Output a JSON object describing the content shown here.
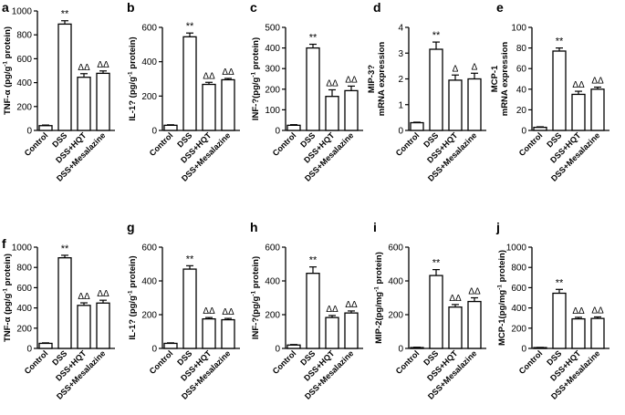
{
  "chart_data": [
    {
      "panel": "a",
      "type": "bar",
      "categories": [
        "Control",
        "DSS",
        "DSS+HQT",
        "DSS+Mesalazine"
      ],
      "values": [
        40,
        890,
        445,
        478
      ],
      "errors": [
        5,
        28,
        30,
        20
      ],
      "annotations": [
        "",
        "**",
        "ΔΔ",
        "ΔΔ"
      ],
      "ylabel_parts": [
        "TNF-α (pg/g",
        "-1",
        " protein)"
      ],
      "ylim": [
        0,
        1000
      ],
      "ticks": [
        0,
        200,
        400,
        600,
        800,
        1000
      ]
    },
    {
      "panel": "b",
      "type": "bar",
      "categories": [
        "Control",
        "DSS",
        "DSS+HQT",
        "DSS+Mesalazine"
      ],
      "values": [
        30,
        545,
        268,
        295
      ],
      "errors": [
        3,
        22,
        12,
        8
      ],
      "annotations": [
        "",
        "**",
        "ΔΔ",
        "ΔΔ"
      ],
      "ylabel_parts": [
        "IL-1? (pg/g",
        "-1",
        " protein)"
      ],
      "ylim": [
        0,
        600
      ],
      "ticks": [
        0,
        200,
        400,
        600
      ]
    },
    {
      "panel": "c",
      "type": "bar",
      "categories": [
        "Control",
        "DSS",
        "DSS+HQT",
        "DSS+Mesalazine"
      ],
      "values": [
        25,
        400,
        165,
        193
      ],
      "errors": [
        3,
        18,
        32,
        22
      ],
      "annotations": [
        "",
        "**",
        "ΔΔ",
        "ΔΔ"
      ],
      "ylabel_parts": [
        "INF-?(pg/g",
        "-1",
        " protein)"
      ],
      "ylim": [
        0,
        500
      ],
      "ticks": [
        0,
        100,
        200,
        300,
        400,
        500
      ]
    },
    {
      "panel": "d",
      "type": "bar",
      "categories": [
        "Control",
        "DSS",
        "DSS+HQT",
        "DSS+Mesalazine"
      ],
      "values": [
        0.3,
        3.15,
        1.95,
        2.0
      ],
      "errors": [
        0.02,
        0.28,
        0.2,
        0.22
      ],
      "annotations": [
        "",
        "**",
        "Δ",
        "Δ"
      ],
      "ylabel_lines": [
        "MIP-3?",
        "mRNA expression"
      ],
      "ylim": [
        0,
        4
      ],
      "ticks": [
        0,
        1,
        2,
        3,
        4
      ]
    },
    {
      "panel": "e",
      "type": "bar",
      "categories": [
        "Control",
        "DSS",
        "DSS+HQT",
        "DSS+Mesalazine"
      ],
      "values": [
        3,
        77,
        35,
        40
      ],
      "errors": [
        0.5,
        3,
        3,
        2
      ],
      "annotations": [
        "",
        "**",
        "ΔΔ",
        "ΔΔ"
      ],
      "ylabel_lines": [
        "MCP-1",
        "mRNA expression"
      ],
      "ylim": [
        0,
        100
      ],
      "ticks": [
        0,
        20,
        40,
        60,
        80,
        100
      ]
    },
    {
      "panel": "f",
      "type": "bar",
      "categories": [
        "Control",
        "DSS",
        "DSS+HQT",
        "DSS+Mesalazine"
      ],
      "values": [
        50,
        895,
        425,
        448
      ],
      "errors": [
        5,
        25,
        25,
        28
      ],
      "annotations": [
        "",
        "**",
        "ΔΔ",
        "ΔΔ"
      ],
      "ylabel_parts": [
        "TNF-α (pg/g",
        "-1",
        " protein)"
      ],
      "ylim": [
        0,
        1000
      ],
      "ticks": [
        0,
        200,
        400,
        600,
        800,
        1000
      ]
    },
    {
      "panel": "g",
      "type": "bar",
      "categories": [
        "Control",
        "DSS",
        "DSS+HQT",
        "DSS+Mesalazine"
      ],
      "values": [
        30,
        470,
        175,
        170
      ],
      "errors": [
        3,
        20,
        8,
        8
      ],
      "annotations": [
        "",
        "**",
        "ΔΔ",
        "ΔΔ"
      ],
      "ylabel_parts": [
        "IL-1? (pg/g",
        "-1",
        " protein)"
      ],
      "ylim": [
        0,
        600
      ],
      "ticks": [
        0,
        200,
        400,
        600
      ]
    },
    {
      "panel": "h",
      "type": "bar",
      "categories": [
        "Control",
        "DSS",
        "DSS+HQT",
        "DSS+Mesalazine"
      ],
      "values": [
        20,
        445,
        183,
        210
      ],
      "errors": [
        3,
        38,
        12,
        12
      ],
      "annotations": [
        "",
        "**",
        "ΔΔ",
        "ΔΔ"
      ],
      "ylabel_parts": [
        "INF-?(pg/g",
        "-1",
        " protein)"
      ],
      "ylim": [
        0,
        600
      ],
      "ticks": [
        0,
        200,
        400,
        600
      ]
    },
    {
      "panel": "i",
      "type": "bar",
      "categories": [
        "Control",
        "DSS",
        "DSS+HQT",
        "DSS+Mesalazine"
      ],
      "values": [
        5,
        432,
        245,
        278
      ],
      "errors": [
        2,
        35,
        15,
        22
      ],
      "annotations": [
        "",
        "**",
        "ΔΔ",
        "ΔΔ"
      ],
      "ylabel_parts": [
        "MIP-2(pg/mg",
        "-1",
        " protein)"
      ],
      "ylim": [
        0,
        600
      ],
      "ticks": [
        0,
        200,
        400,
        600
      ]
    },
    {
      "panel": "j",
      "type": "bar",
      "categories": [
        "Control",
        "DSS",
        "DSS+HQT",
        "DSS+Mesalazine"
      ],
      "values": [
        8,
        545,
        292,
        296
      ],
      "errors": [
        2,
        38,
        15,
        15
      ],
      "annotations": [
        "",
        "**",
        "ΔΔ",
        "ΔΔ"
      ],
      "ylabel_parts": [
        "MCP-1(pg/mg",
        "-1",
        " protein)"
      ],
      "ylim": [
        0,
        1000
      ],
      "ticks": [
        0,
        200,
        400,
        600,
        800,
        1000
      ]
    }
  ]
}
